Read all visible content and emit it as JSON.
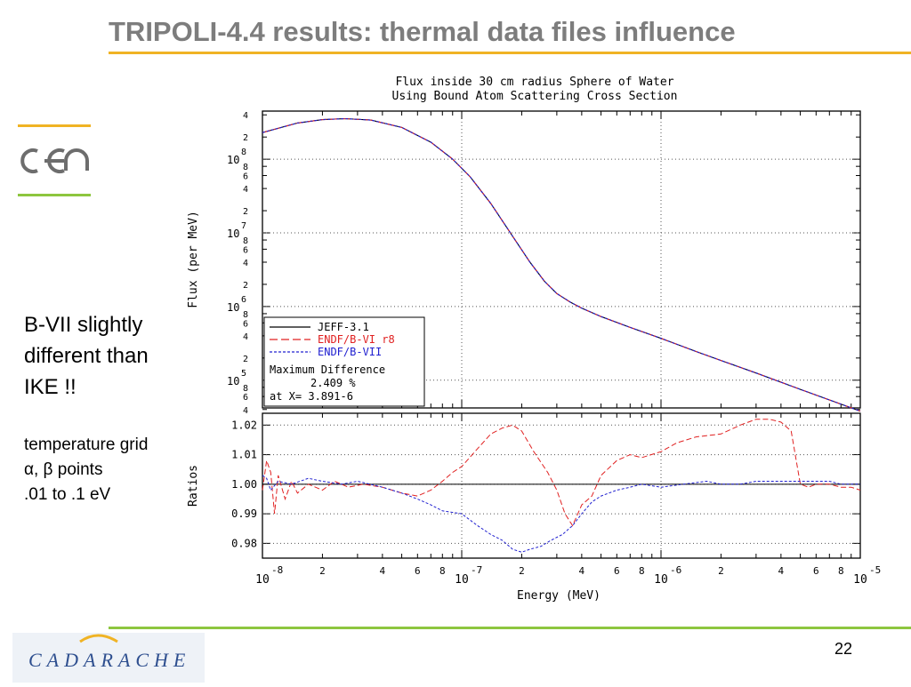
{
  "slide": {
    "title": "TRIPOLI-4.4 results: thermal data files influence",
    "page_number": "22",
    "side_text_big": [
      "B-VII slightly",
      "different than",
      "IKE !!"
    ],
    "side_text_small": [
      "temperature grid",
      "α, β points",
      ".01 to .1 eV"
    ],
    "cea_logo_text": "cea",
    "footer_logo_text": "CADARACHE",
    "colors": {
      "title": "#7d7d7d",
      "accent_yellow": "#f0b324",
      "accent_green": "#8dc63f",
      "footer_blue": "#2e4f8f"
    }
  },
  "chart_data": {
    "type": "line",
    "title": [
      "Flux inside 30 cm radius Sphere of Water",
      "Using Bound Atom Scattering Cross Section"
    ],
    "xlabel": "Energy (MeV)",
    "xscale": "log",
    "xlim": [
      1e-08,
      1e-05
    ],
    "x_ticks": [
      "10",
      "2",
      "4",
      "6",
      "8",
      "10",
      "2",
      "4",
      "6",
      "8",
      "10",
      "2",
      "4",
      "6",
      "8",
      "10"
    ],
    "x_tick_exponents": [
      "-8",
      "-7",
      "-6",
      "-5"
    ],
    "top_panel": {
      "ylabel": "Flux (per MeV)",
      "yscale": "log",
      "ylim": [
        42000,
        450000000
      ],
      "y_tick_labels": [
        {
          "v": 400000000,
          "t": "4"
        },
        {
          "v": 200000000,
          "t": "2"
        },
        {
          "v": 100000000,
          "t": "10",
          "exp": "8"
        },
        {
          "v": 80000000,
          "t": "8"
        },
        {
          "v": 60000000,
          "t": "6"
        },
        {
          "v": 40000000,
          "t": "4"
        },
        {
          "v": 20000000,
          "t": "2"
        },
        {
          "v": 10000000,
          "t": "10",
          "exp": "7"
        },
        {
          "v": 8000000,
          "t": "8"
        },
        {
          "v": 6000000,
          "t": "6"
        },
        {
          "v": 4000000,
          "t": "4"
        },
        {
          "v": 2000000,
          "t": "2"
        },
        {
          "v": 1000000,
          "t": "10",
          "exp": "6"
        },
        {
          "v": 800000,
          "t": "8"
        },
        {
          "v": 600000,
          "t": "6"
        },
        {
          "v": 400000,
          "t": "4"
        },
        {
          "v": 200000,
          "t": "2"
        },
        {
          "v": 100000,
          "t": "10",
          "exp": "5"
        },
        {
          "v": 80000,
          "t": "8"
        },
        {
          "v": 60000,
          "t": "6"
        },
        {
          "v": 40000,
          "t": "4"
        }
      ],
      "flux_curve": {
        "x": [
          1e-08,
          1.5e-08,
          2e-08,
          2.6e-08,
          3.5e-08,
          5e-08,
          7e-08,
          9e-08,
          1.1e-07,
          1.4e-07,
          1.8e-07,
          2.2e-07,
          2.6e-07,
          3e-07,
          3.5e-07,
          4e-07,
          5e-07,
          7e-07,
          1e-06,
          1.5e-06,
          2e-06,
          3e-06,
          5e-06,
          7e-06,
          1e-05
        ],
        "y": [
          230000000,
          310000000,
          345000000,
          355000000,
          340000000,
          270000000,
          170000000,
          100000000,
          58000000,
          25000000,
          9000000,
          4000000,
          2200000,
          1500000,
          1150000,
          950000,
          730000,
          520000,
          370000,
          245000,
          185000,
          125000,
          75000,
          54000,
          38000
        ]
      },
      "series": [
        {
          "name": "JEFF-3.1",
          "color": "#000000",
          "dash": "solid"
        },
        {
          "name": "ENDF/B-VI r8",
          "color": "#e02020",
          "dash": "long-dash"
        },
        {
          "name": "ENDF/B-VII",
          "color": "#2020d0",
          "dash": "short-dash"
        }
      ],
      "legend_lines": [
        "Maximum Difference",
        "2.409 %",
        "at X= 3.891-6"
      ],
      "legend_position": "bottom-left"
    },
    "bottom_panel": {
      "ylabel": "Ratios",
      "ylim": [
        0.975,
        1.024
      ],
      "y_ticks": [
        "1.02",
        "1.01",
        "1.00",
        "0.99",
        "0.98"
      ],
      "y_tick_values": [
        1.02,
        1.01,
        1.0,
        0.99,
        0.98
      ],
      "reference": 1.0,
      "ratio_series": [
        {
          "name": "ENDF/B-VI r8",
          "x": [
            1e-08,
            1.05e-08,
            1.1e-08,
            1.15e-08,
            1.2e-08,
            1.3e-08,
            1.4e-08,
            1.5e-08,
            1.7e-08,
            2e-08,
            2.3e-08,
            2.7e-08,
            3.2e-08,
            4e-08,
            5e-08,
            6e-08,
            7e-08,
            8e-08,
            9e-08,
            1e-07,
            1.2e-07,
            1.4e-07,
            1.6e-07,
            1.8e-07,
            2e-07,
            2.3e-07,
            2.7e-07,
            3e-07,
            3.3e-07,
            3.6e-07,
            4e-07,
            4.5e-07,
            5e-07,
            6e-07,
            7e-07,
            8e-07,
            1e-06,
            1.2e-06,
            1.5e-06,
            2e-06,
            2.5e-06,
            3e-06,
            3.5e-06,
            4e-06,
            4.5e-06,
            5e-06,
            5.5e-06,
            6e-06,
            7e-06,
            8e-06,
            9e-06,
            1e-05
          ],
          "y": [
            0.998,
            1.008,
            1.004,
            0.99,
            1.003,
            0.995,
            1.001,
            0.997,
            1.0,
            0.998,
            1.001,
            0.999,
            1.0,
            0.999,
            0.997,
            0.996,
            0.998,
            1.001,
            1.004,
            1.006,
            1.012,
            1.017,
            1.019,
            1.02,
            1.018,
            1.011,
            1.004,
            0.998,
            0.99,
            0.986,
            0.993,
            0.996,
            1.003,
            1.008,
            1.01,
            1.009,
            1.011,
            1.014,
            1.016,
            1.017,
            1.02,
            1.022,
            1.022,
            1.021,
            1.018,
            1.0,
            0.999,
            1.0,
            1.0,
            0.999,
            0.999,
            0.998
          ]
        },
        {
          "name": "ENDF/B-VII",
          "x": [
            1e-08,
            1.05e-08,
            1.1e-08,
            1.2e-08,
            1.4e-08,
            1.7e-08,
            2e-08,
            2.5e-08,
            3e-08,
            4e-08,
            5e-08,
            6e-08,
            7e-08,
            8e-08,
            1e-07,
            1.2e-07,
            1.4e-07,
            1.6e-07,
            1.8e-07,
            2e-07,
            2.2e-07,
            2.5e-07,
            2.8e-07,
            3.2e-07,
            3.6e-07,
            4e-07,
            4.5e-07,
            5e-07,
            6e-07,
            7e-07,
            8e-07,
            1e-06,
            1.3e-06,
            1.7e-06,
            2e-06,
            2.5e-06,
            3e-06,
            4e-06,
            5e-06,
            6e-06,
            7e-06,
            8e-06,
            1e-05
          ],
          "y": [
            1.003,
            1.002,
            0.998,
            1.001,
            1.0,
            1.002,
            1.001,
            1.0,
            1.001,
            0.999,
            0.997,
            0.995,
            0.993,
            0.991,
            0.99,
            0.986,
            0.983,
            0.981,
            0.978,
            0.977,
            0.978,
            0.979,
            0.981,
            0.983,
            0.986,
            0.99,
            0.994,
            0.996,
            0.998,
            0.999,
            1.0,
            0.999,
            1.0,
            1.001,
            1.0,
            1.0,
            1.001,
            1.001,
            1.001,
            1.001,
            1.001,
            1.0,
            1.0
          ]
        }
      ]
    }
  }
}
